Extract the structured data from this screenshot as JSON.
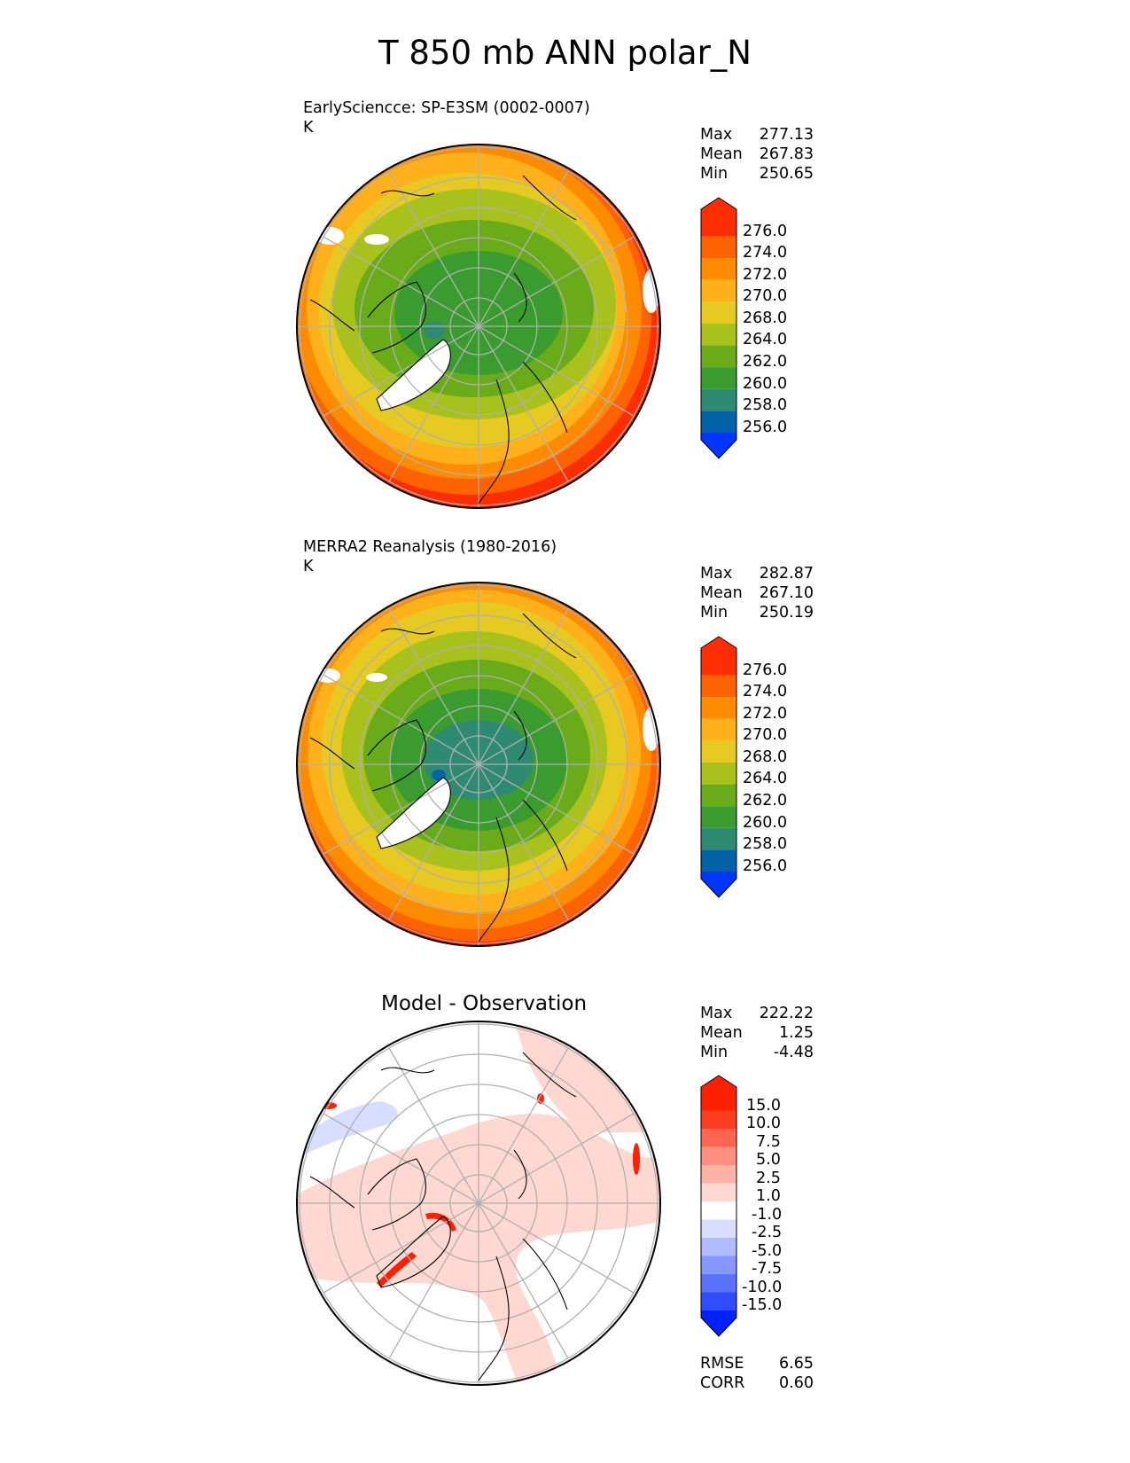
{
  "title": "T 850 mb ANN polar_N",
  "colors": {
    "abs_levels": [
      "#0035ff",
      "#0063a7",
      "#2e8a70",
      "#3a9c2e",
      "#6aab1a",
      "#a8c11c",
      "#e6c921",
      "#ffb11c",
      "#ff8c00",
      "#ff6200",
      "#ff2d00"
    ],
    "diff_levels": [
      "#0022ff",
      "#2f4dff",
      "#5a72ff",
      "#8697ff",
      "#b0bcff",
      "#d8deff",
      "#ffffff",
      "#ffd8d2",
      "#ffb3a7",
      "#ff8f80",
      "#ff6550",
      "#ff3d1f",
      "#ff2000"
    ],
    "land_mask": "#ffffff",
    "grid": "#b0b0b0",
    "coast": "#000000"
  },
  "panels": [
    {
      "title": "EarlySciencce: SP-E3SM (0002-0007)",
      "units": "K",
      "stats": [
        {
          "label": "Max",
          "value": "277.13"
        },
        {
          "label": "Mean",
          "value": "267.83"
        },
        {
          "label": "Min",
          "value": "250.65"
        }
      ],
      "colorbar_labels": [
        "276.0",
        "274.0",
        "272.0",
        "270.0",
        "268.0",
        "264.0",
        "262.0",
        "260.0",
        "258.0",
        "256.0"
      ]
    },
    {
      "title": "MERRA2 Reanalysis (1980-2016)",
      "units": "K",
      "stats": [
        {
          "label": "Max",
          "value": "282.87"
        },
        {
          "label": "Mean",
          "value": "267.10"
        },
        {
          "label": "Min",
          "value": "250.19"
        }
      ],
      "colorbar_labels": [
        "276.0",
        "274.0",
        "272.0",
        "270.0",
        "268.0",
        "264.0",
        "262.0",
        "260.0",
        "258.0",
        "256.0"
      ]
    },
    {
      "title": "Model - Observation",
      "stats": [
        {
          "label": "Max",
          "value": "222.22"
        },
        {
          "label": "Mean",
          "value": "1.25"
        },
        {
          "label": "Min",
          "value": "-4.48"
        }
      ],
      "colorbar_labels": [
        "15.0",
        "10.0",
        "7.5",
        "5.0",
        "2.5",
        "1.0",
        "-1.0",
        "-2.5",
        "-5.0",
        "-7.5",
        "-10.0",
        "-15.0"
      ],
      "metrics": [
        {
          "label": "RMSE",
          "value": "6.65"
        },
        {
          "label": "CORR",
          "value": "0.60"
        }
      ]
    }
  ]
}
